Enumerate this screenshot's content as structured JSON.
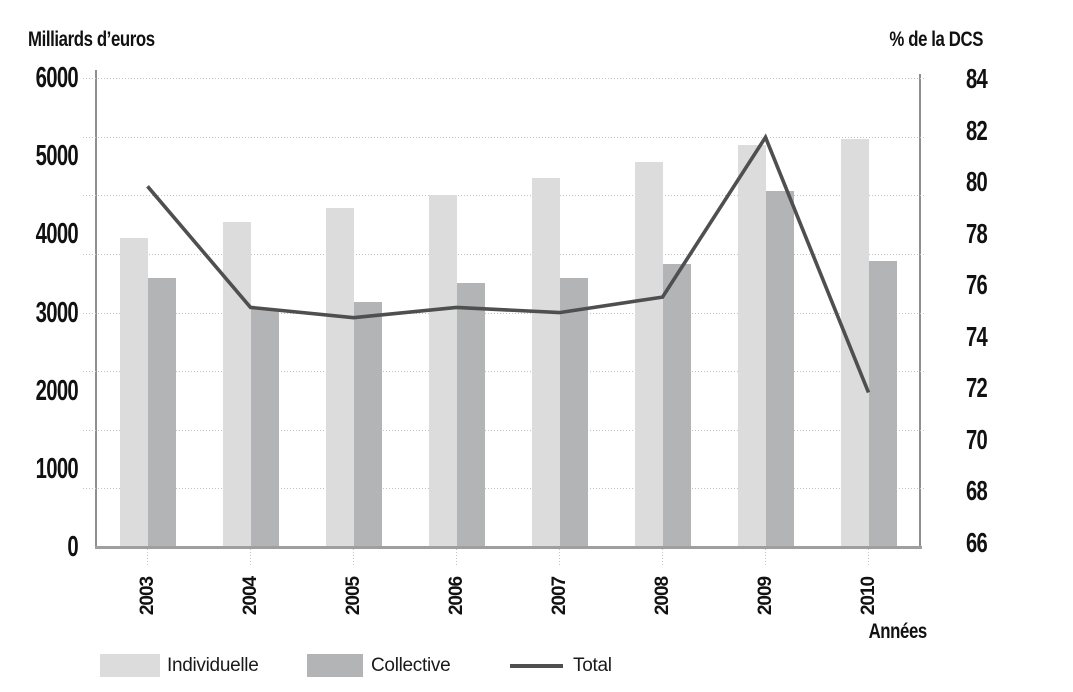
{
  "chart_data": {
    "type": "bar+line",
    "title_left": "Milliards d’euros",
    "title_right": "% de la DCS",
    "xlabel": "Années",
    "categories": [
      "2003",
      "2004",
      "2005",
      "2006",
      "2007",
      "2008",
      "2009",
      "2010"
    ],
    "bar_series": [
      {
        "name": "Individuelle",
        "axis": "left",
        "color": "#dcdcdd",
        "values": [
          3950,
          4160,
          4330,
          4500,
          4720,
          4920,
          5140,
          5220
        ]
      },
      {
        "name": "Collective",
        "axis": "left",
        "color": "#b2b4b5",
        "values": [
          3440,
          3040,
          3130,
          3370,
          3440,
          3620,
          4550,
          3660
        ]
      }
    ],
    "line_series": [
      {
        "name": "Total",
        "axis": "right",
        "color": "#4f4f4f",
        "values": [
          79.8,
          75.1,
          74.7,
          75.1,
          74.9,
          75.5,
          81.7,
          71.8
        ]
      }
    ],
    "left_axis": {
      "min": 0,
      "max": 6000,
      "ticks": [
        "6000",
        "5000",
        "4000",
        "3000",
        "2000",
        "1000",
        "0"
      ]
    },
    "right_axis": {
      "min": 66,
      "max": 84,
      "ticks": [
        "84",
        "82",
        "80",
        "78",
        "76",
        "74",
        "72",
        "70",
        "68",
        "66"
      ]
    },
    "grid": {
      "horizontal_lines": 9,
      "style": "dotted",
      "color": "#c2c2c2"
    },
    "legend": {
      "position": "bottom",
      "items": [
        {
          "label": "Individuelle",
          "type": "swatch",
          "color": "#dcdcdd"
        },
        {
          "label": "Collective",
          "type": "swatch",
          "color": "#b2b4b5"
        },
        {
          "label": "Total",
          "type": "line",
          "color": "#4f4f4f"
        }
      ]
    }
  }
}
